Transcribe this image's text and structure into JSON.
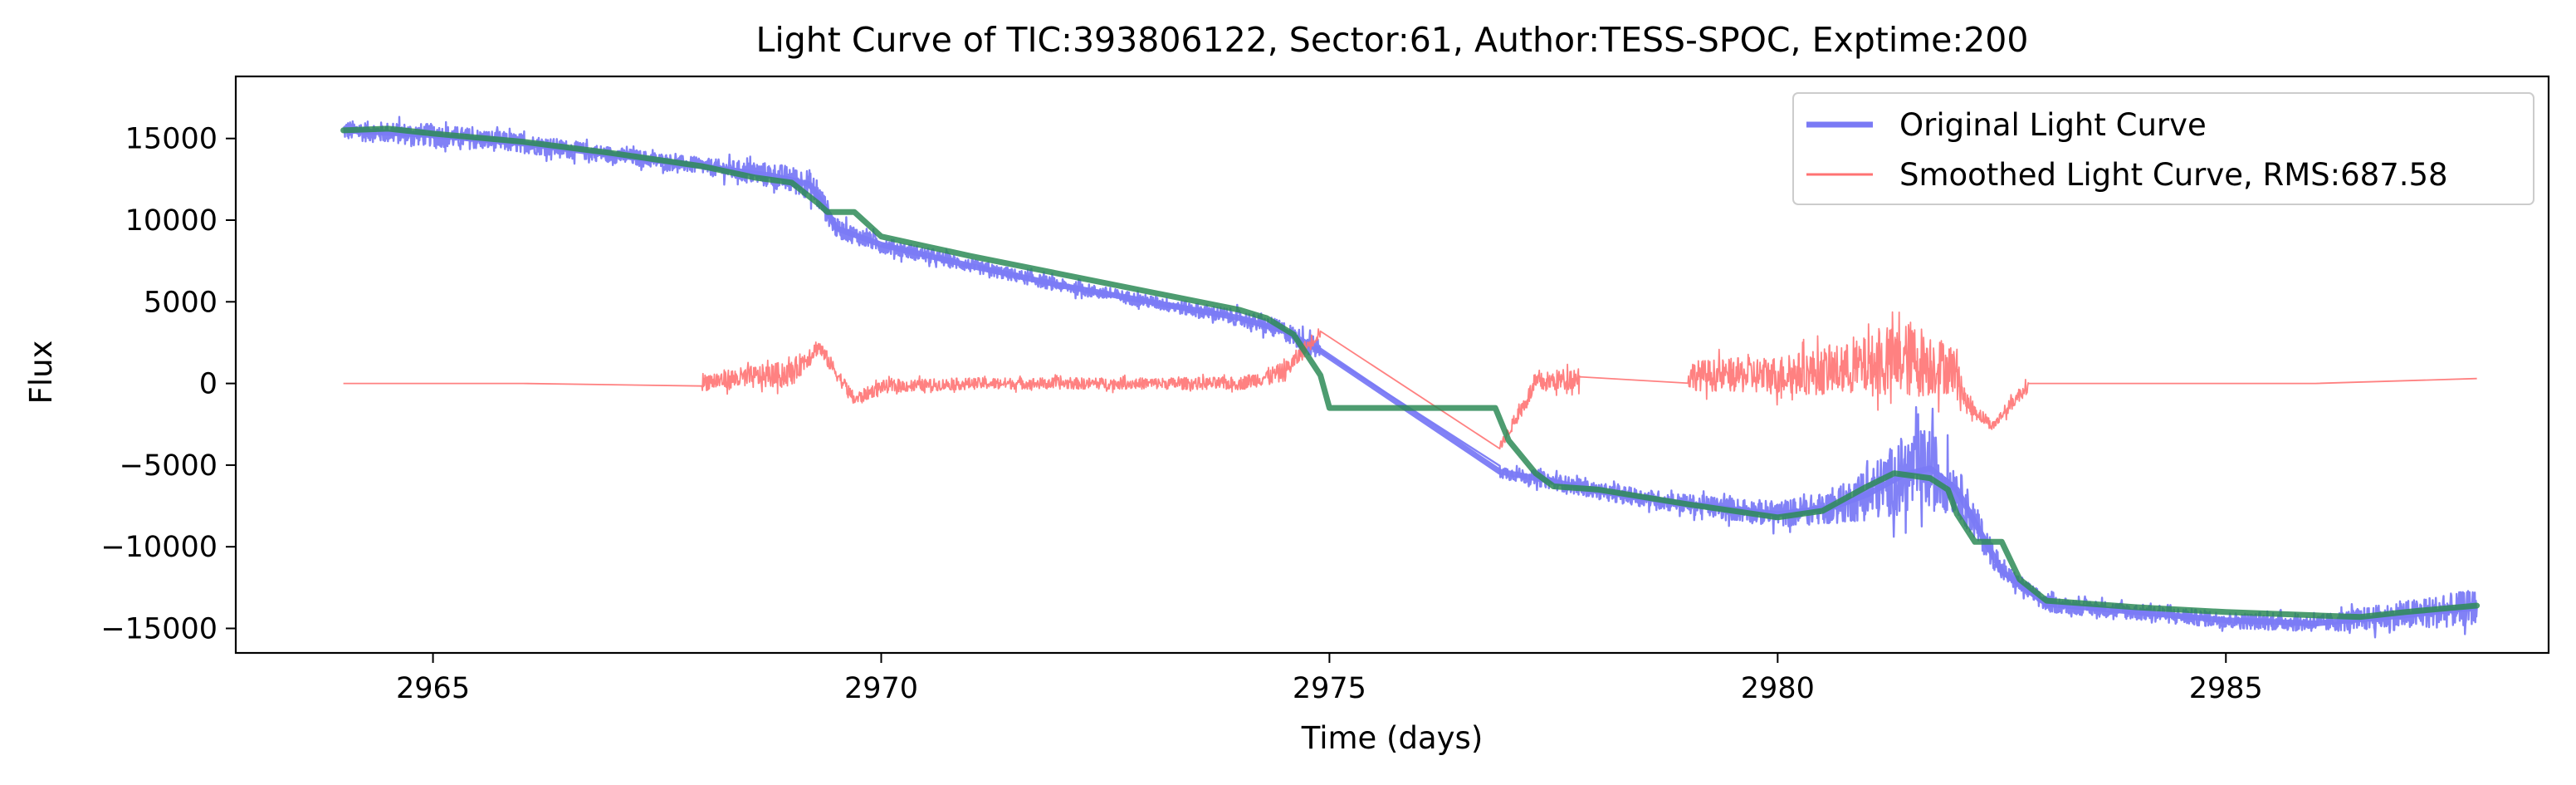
{
  "chart_data": {
    "type": "line",
    "title": "Light Curve of TIC:393806122, Sector:61, Author:TESS-SPOC, Exptime:200",
    "xlabel": "Time (days)",
    "ylabel": "Flux",
    "xlim": [
      2962.8,
      2988.6
    ],
    "ylim": [
      -16500,
      18800
    ],
    "x_ticks": [
      2965,
      2970,
      2975,
      2980,
      2985
    ],
    "y_ticks": [
      15000,
      10000,
      5000,
      0,
      -5000,
      -10000,
      -15000
    ],
    "x_tick_labels": [
      "2965",
      "2970",
      "2975",
      "2980",
      "2985"
    ],
    "y_tick_labels": [
      "15000",
      "10000",
      "5000",
      "0",
      "−5000",
      "−10000",
      "−15000"
    ],
    "grid": false,
    "legend_position": "top-right",
    "rms": 687.58,
    "series": [
      {
        "name": "Original Light Curve",
        "color": "#7a7af5",
        "style": "noisy-band",
        "x": [
          2964.0,
          2965.0,
          2966.0,
          2967.0,
          2968.0,
          2968.8,
          2969.2,
          2969.35,
          2969.5,
          2970.0,
          2971.0,
          2972.0,
          2973.0,
          2974.0,
          2974.5,
          2974.9,
          2976.9,
          2977.5,
          2978.0,
          2979.0,
          2980.0,
          2980.6,
          2981.0,
          2981.4,
          2981.7,
          2982.0,
          2982.5,
          2983.0,
          2984.0,
          2985.0,
          2986.0,
          2987.0,
          2987.8
        ],
        "y": [
          15500,
          15200,
          14700,
          14000,
          13300,
          12700,
          12200,
          11000,
          9500,
          8500,
          7200,
          6000,
          5000,
          4000,
          3200,
          2000,
          -5400,
          -6000,
          -6600,
          -7400,
          -8000,
          -7600,
          -6800,
          -5600,
          -5200,
          -6500,
          -11500,
          -13500,
          -14000,
          -14500,
          -14700,
          -14200,
          -13700
        ],
        "noise": [
          600,
          700,
          600,
          500,
          500,
          800,
          900,
          800,
          600,
          500,
          400,
          400,
          400,
          500,
          600,
          700,
          400,
          500,
          500,
          600,
          800,
          1000,
          1600,
          2400,
          2600,
          1500,
          600,
          500,
          500,
          500,
          500,
          900,
          1100
        ]
      },
      {
        "name": "Smoothed Light Curve, RMS:687.58",
        "color": "#ff7373",
        "style": "noisy-band",
        "x": [
          2964.0,
          2966.0,
          2968.0,
          2969.0,
          2969.3,
          2969.7,
          2970.0,
          2971.0,
          2972.0,
          2973.0,
          2974.0,
          2974.5,
          2974.9,
          2976.9,
          2977.3,
          2977.8,
          2979.0,
          2980.0,
          2980.8,
          2981.5,
          2982.0,
          2982.1,
          2982.4,
          2982.8,
          2984.0,
          2986.0,
          2987.8
        ],
        "y": [
          0,
          0,
          100,
          600,
          2300,
          -1000,
          -200,
          0,
          0,
          0,
          0,
          700,
          3200,
          -3900,
          0,
          400,
          500,
          500,
          900,
          1500,
          800,
          -1200,
          -2600,
          0,
          0,
          0,
          300
        ],
        "noise": [
          450,
          450,
          550,
          800,
          500,
          400,
          400,
          350,
          350,
          350,
          400,
          600,
          400,
          250,
          600,
          700,
          900,
          1200,
          1600,
          2400,
          1400,
          600,
          300,
          500,
          500,
          550,
          800
        ]
      },
      {
        "name": "",
        "color": "#2e8b57",
        "style": "smooth",
        "x": [
          2964.0,
          2964.5,
          2965.0,
          2966.0,
          2967.0,
          2968.0,
          2968.6,
          2969.0,
          2969.3,
          2969.4,
          2969.7,
          2970.0,
          2970.5,
          2971.0,
          2972.0,
          2973.0,
          2974.0,
          2974.3,
          2974.6,
          2974.9,
          2975.0,
          2976.85,
          2977.0,
          2977.3,
          2977.5,
          2978.0,
          2979.0,
          2980.0,
          2980.5,
          2981.0,
          2981.3,
          2981.7,
          2981.9,
          2982.0,
          2982.2,
          2982.5,
          2982.7,
          2983.0,
          2984.0,
          2985.0,
          2986.0,
          2986.5,
          2987.0,
          2987.8
        ],
        "y": [
          15500,
          15600,
          15300,
          14800,
          14100,
          13300,
          12600,
          12300,
          11000,
          10500,
          10500,
          9000,
          8400,
          7800,
          6700,
          5600,
          4500,
          4000,
          3000,
          500,
          -1500,
          -1500,
          -3500,
          -5500,
          -6300,
          -6500,
          -7400,
          -8200,
          -7800,
          -6300,
          -5500,
          -5800,
          -6500,
          -8000,
          -9700,
          -9700,
          -12000,
          -13300,
          -13700,
          -14000,
          -14200,
          -14300,
          -14000,
          -13600
        ]
      }
    ]
  }
}
